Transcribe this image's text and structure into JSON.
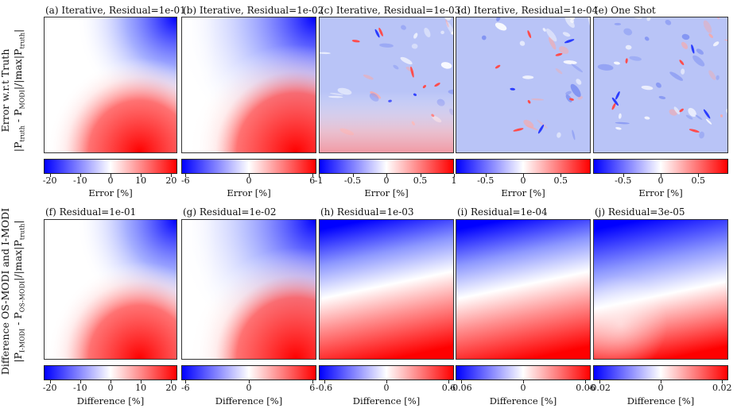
{
  "row_labels": {
    "top": {
      "line1": "Error w.r.t Truth",
      "line2_pre": "|P",
      "sub1": "truth",
      "mid": " - P",
      "sub2": "MODI",
      "post": "|/|max|P",
      "sub3": "truth",
      "end": "|"
    },
    "bottom": {
      "line1": "Difference OS-MODI and I-MODI",
      "line2_pre": "|P",
      "sub1": "I-MODI",
      "mid": " - P",
      "sub2": "OS-MODI",
      "post": "|/|max|P",
      "sub3": "truth",
      "end": "|"
    }
  },
  "colormap": {
    "low": "#0000ff",
    "mid": "#ffffff",
    "high": "#ff0000"
  },
  "panels": [
    {
      "title": "(a) Iterative, Residual=1e-01",
      "pattern": "smooth",
      "cbar_label": "Error [%]",
      "ticks": [
        {
          "v": -20,
          "t": "-20"
        },
        {
          "v": -10,
          "t": "-10"
        },
        {
          "v": 0,
          "t": "0"
        },
        {
          "v": 10,
          "t": "10"
        },
        {
          "v": 20,
          "t": "20"
        }
      ],
      "range": [
        -22,
        22
      ]
    },
    {
      "title": "(b) Iterative, Residual=1e-02",
      "pattern": "smooth-weak",
      "cbar_label": "Error [%]",
      "ticks": [
        {
          "v": -6,
          "t": "-6"
        },
        {
          "v": 0,
          "t": "0"
        },
        {
          "v": 6,
          "t": "6"
        }
      ],
      "range": [
        -6.4,
        6.4
      ]
    },
    {
      "title": "(c) Iterative, Residual=1e-03",
      "pattern": "noisy",
      "cbar_label": "Error [%]",
      "ticks": [
        {
          "v": -1,
          "t": "-1"
        },
        {
          "v": -0.5,
          "t": "-0.5"
        },
        {
          "v": 0,
          "t": "0"
        },
        {
          "v": 0.5,
          "t": "0.5"
        },
        {
          "v": 1,
          "t": "1"
        }
      ],
      "range": [
        -1,
        1
      ]
    },
    {
      "title": "(d) Iterative, Residual=1e-04",
      "pattern": "noisy",
      "cbar_label": "Error [%]",
      "ticks": [
        {
          "v": -0.5,
          "t": "-0.5"
        },
        {
          "v": 0,
          "t": "0"
        },
        {
          "v": 0.5,
          "t": "0.5"
        }
      ],
      "range": [
        -0.9,
        0.9
      ]
    },
    {
      "title": "(e) One Shot",
      "pattern": "noisy",
      "cbar_label": "Error [%]",
      "ticks": [
        {
          "v": -0.5,
          "t": "-0.5"
        },
        {
          "v": 0,
          "t": "0"
        },
        {
          "v": 0.5,
          "t": "0.5"
        }
      ],
      "range": [
        -0.9,
        0.9
      ]
    },
    {
      "title": "(f) Residual=1e-01",
      "pattern": "smooth",
      "cbar_label": "Difference [%]",
      "ticks": [
        {
          "v": -20,
          "t": "-20"
        },
        {
          "v": -10,
          "t": "-10"
        },
        {
          "v": 0,
          "t": "0"
        },
        {
          "v": 10,
          "t": "10"
        },
        {
          "v": 20,
          "t": "20"
        }
      ],
      "range": [
        -22,
        22
      ]
    },
    {
      "title": "(g) Residual=1e-02",
      "pattern": "smooth-weak",
      "cbar_label": "Difference [%]",
      "ticks": [
        {
          "v": -6,
          "t": "-6"
        },
        {
          "v": 0,
          "t": "0"
        },
        {
          "v": 6,
          "t": "6"
        }
      ],
      "range": [
        -6.4,
        6.4
      ]
    },
    {
      "title": "(h) Residual=1e-03",
      "pattern": "gradient",
      "cbar_label": "Difference [%]",
      "ticks": [
        {
          "v": -0.6,
          "t": "-0.6"
        },
        {
          "v": 0,
          "t": "0"
        },
        {
          "v": 0.6,
          "t": "0.6"
        }
      ],
      "range": [
        -0.65,
        0.65
      ]
    },
    {
      "title": "(i) Residual=1e-04",
      "pattern": "gradient",
      "cbar_label": "Difference [%]",
      "ticks": [
        {
          "v": -0.06,
          "t": "-0.06"
        },
        {
          "v": 0,
          "t": "0"
        },
        {
          "v": 0.06,
          "t": "0.06"
        }
      ],
      "range": [
        -0.065,
        0.065
      ]
    },
    {
      "title": "(j) Residual=3e-05",
      "pattern": "gradient-wavy",
      "cbar_label": "Difference [%]",
      "ticks": [
        {
          "v": -0.02,
          "t": "-0.02"
        },
        {
          "v": 0,
          "t": "0"
        },
        {
          "v": 0.02,
          "t": "0.02"
        }
      ],
      "range": [
        -0.022,
        0.022
      ]
    }
  ],
  "chart_data": [
    {
      "type": "heatmap",
      "title": "(a) Iterative, Residual=1e-01",
      "colorbar_label": "Error [%]",
      "colorbar_ticks": [
        -20,
        -10,
        0,
        10,
        20
      ]
    },
    {
      "type": "heatmap",
      "title": "(b) Iterative, Residual=1e-02",
      "colorbar_label": "Error [%]",
      "colorbar_ticks": [
        -6,
        0,
        6
      ]
    },
    {
      "type": "heatmap",
      "title": "(c) Iterative, Residual=1e-03",
      "colorbar_label": "Error [%]",
      "colorbar_ticks": [
        -1,
        -0.5,
        0,
        0.5,
        1
      ]
    },
    {
      "type": "heatmap",
      "title": "(d) Iterative, Residual=1e-04",
      "colorbar_label": "Error [%]",
      "colorbar_ticks": [
        -0.5,
        0,
        0.5
      ]
    },
    {
      "type": "heatmap",
      "title": "(e) One Shot",
      "colorbar_label": "Error [%]",
      "colorbar_ticks": [
        -0.5,
        0,
        0.5
      ]
    },
    {
      "type": "heatmap",
      "title": "(f) Residual=1e-01",
      "colorbar_label": "Difference [%]",
      "colorbar_ticks": [
        -20,
        -10,
        0,
        10,
        20
      ]
    },
    {
      "type": "heatmap",
      "title": "(g) Residual=1e-02",
      "colorbar_label": "Difference [%]",
      "colorbar_ticks": [
        -6,
        0,
        6
      ]
    },
    {
      "type": "heatmap",
      "title": "(h) Residual=1e-03",
      "colorbar_label": "Difference [%]",
      "colorbar_ticks": [
        -0.6,
        0,
        0.6
      ]
    },
    {
      "type": "heatmap",
      "title": "(i) Residual=1e-04",
      "colorbar_label": "Difference [%]",
      "colorbar_ticks": [
        -0.06,
        0,
        0.06
      ]
    },
    {
      "type": "heatmap",
      "title": "(j) Residual=3e-05",
      "colorbar_label": "Difference [%]",
      "colorbar_ticks": [
        -0.02,
        0,
        0.02
      ]
    }
  ]
}
